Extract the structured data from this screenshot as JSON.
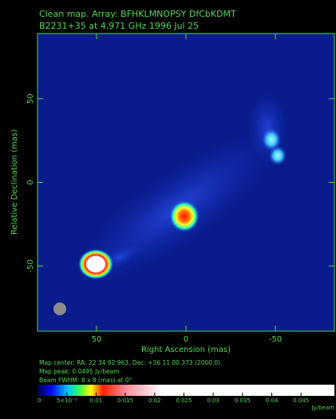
{
  "chart_data": {
    "type": "image",
    "title": "Clean map.  Array: BFHKLMNOPSY DfCbKDMT",
    "subtitle": "B2231+35 at 4.971 GHz 1996 Jul 25",
    "xlabel": "Right Ascension  (mas)",
    "ylabel": "Relative Declination  (mas)",
    "xlim": [
      83,
      -83
    ],
    "xticks": [
      50,
      0,
      -50
    ],
    "ylim": [
      -89,
      89
    ],
    "yticks": [
      -50,
      0,
      50
    ],
    "notes": [
      "Map center:  RA: 22 34 02.963,  Dec: +36 11 00.373 (2000.0)",
      "Map peak: 0.0495 Jy/beam",
      "Beam FWHM: 8 x 8 (mas) at 0°"
    ],
    "colorbar": {
      "clim": [
        0,
        0.0507
      ],
      "label": "Jy/beam",
      "ticks": [
        0,
        {
          "value": 0.005,
          "label": "5×10⁻³"
        },
        0.01,
        0.015,
        0.02,
        0.025,
        0.03,
        0.035,
        0.04,
        0.045
      ]
    },
    "frame_color": "#4fd84f"
  }
}
